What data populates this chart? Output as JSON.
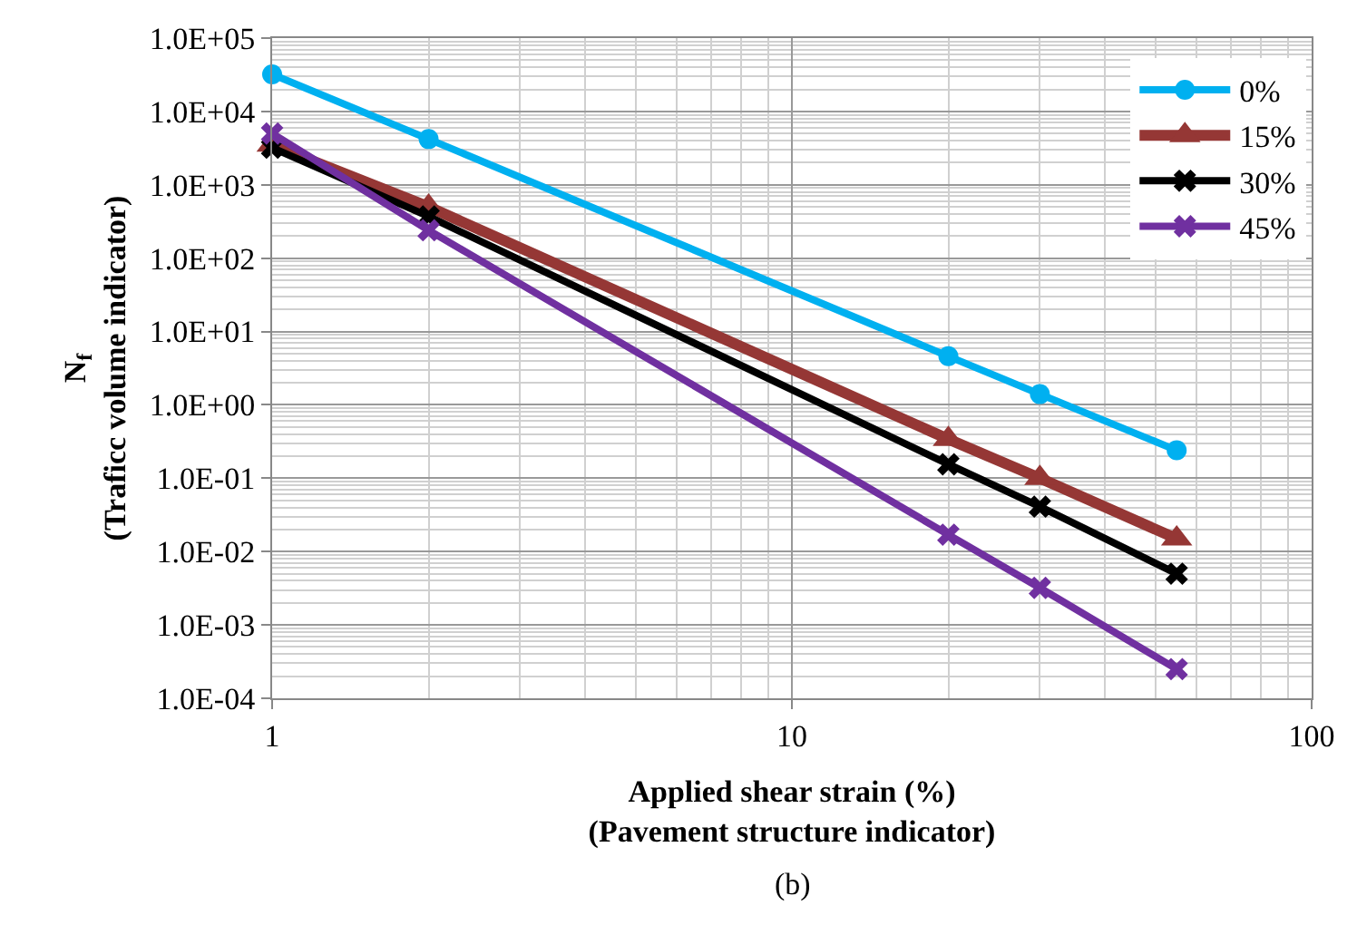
{
  "chart_data": {
    "type": "line",
    "xlabel": "Applied shear strain (%)\n(Pavement structure indicator)",
    "ylabel": "N$_{f}$\n(Traficc volume indicator)",
    "annotations": [
      "(b)"
    ],
    "x": [
      1,
      2,
      20,
      30,
      55
    ],
    "series": [
      {
        "name": "0%",
        "color": "#00b0f0",
        "marker": "circle",
        "values": [
          32000,
          4200,
          4.6,
          1.4,
          0.24
        ]
      },
      {
        "name": "15%",
        "color": "#953735",
        "marker": "triangle",
        "values": [
          3500,
          500,
          0.34,
          0.1,
          0.015
        ]
      },
      {
        "name": "30%",
        "color": "#000000",
        "marker": "cross",
        "values": [
          3200,
          370,
          0.155,
          0.041,
          0.005
        ]
      },
      {
        "name": "45%",
        "color": "#7030a0",
        "marker": "cross",
        "values": [
          5000,
          240,
          0.017,
          0.0032,
          0.00025
        ]
      }
    ],
    "log": "xy",
    "xlim": [
      1,
      100
    ],
    "xticks": [
      1,
      10,
      100
    ],
    "ylim": [
      0.0001,
      100000
    ],
    "yticks": [
      {
        "value": 0.0001,
        "label": "1.0E-04"
      },
      {
        "value": 0.001,
        "label": "1.0E-03"
      },
      {
        "value": 0.01,
        "label": "1.0E-02"
      },
      {
        "value": 0.1,
        "label": "1.0E-01"
      },
      {
        "value": 1,
        "label": "1.0E+00"
      },
      {
        "value": 10,
        "label": "1.0E+01"
      },
      {
        "value": 100,
        "label": "1.0E+02"
      },
      {
        "value": 1000,
        "label": "1.0E+03"
      },
      {
        "value": 10000,
        "label": "1.0E+04"
      },
      {
        "value": 100000,
        "label": "1.0E+05"
      }
    ],
    "grid": true,
    "legend": "top right",
    "line_style": "solid"
  }
}
